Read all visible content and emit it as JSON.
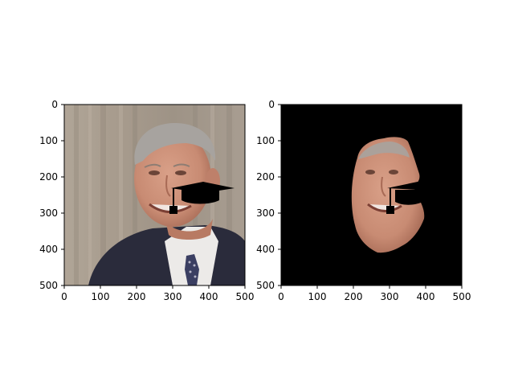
{
  "figure": {
    "panels": [
      {
        "id": "left",
        "image": "photo of a smiling man in a suit with a graduation cap overlay",
        "xticks": [
          "0",
          "100",
          "200",
          "300",
          "400",
          "500"
        ],
        "yticks": [
          "0",
          "100",
          "200",
          "300",
          "400",
          "500"
        ],
        "xlim": [
          0,
          500
        ],
        "ylim": [
          500,
          0
        ]
      },
      {
        "id": "right",
        "image": "segmented face on black background with graduation cap overlay",
        "xticks": [
          "0",
          "100",
          "200",
          "300",
          "400",
          "500"
        ],
        "yticks": [
          "0",
          "100",
          "200",
          "300",
          "400",
          "500"
        ],
        "xlim": [
          0,
          500
        ],
        "ylim": [
          500,
          0
        ]
      }
    ]
  },
  "colors": {
    "axis": "#000000",
    "background_black": "#000000",
    "curtain": "#a59a8c",
    "suit": "#2a2b3b",
    "shirt": "#ecebea",
    "skin": "#c98d74",
    "hair": "#a7a39f",
    "tie": "#3b3f62"
  }
}
